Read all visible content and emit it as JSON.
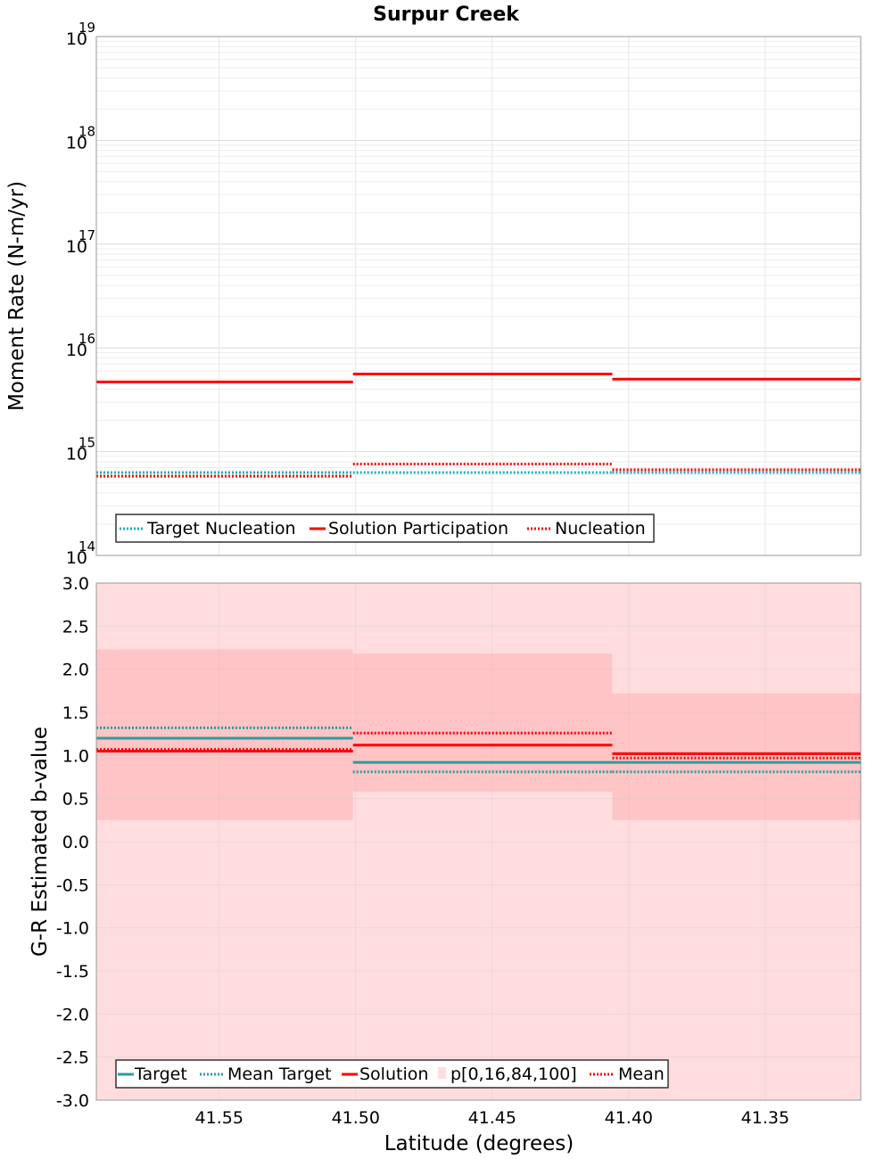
{
  "title": "Surpur Creek",
  "colors": {
    "target": "#2a9d9d",
    "target_dotted": "#1ab0b8",
    "solution": "#ff0000",
    "band_outer": "#ffdddf",
    "band_inner": "#ffc4c6",
    "grid": "#e6e6e6"
  },
  "chart_data": [
    {
      "type": "line",
      "step": true,
      "yscale": "log",
      "ylabel": "Moment Rate (N-m/yr)",
      "ylim": [
        100000000000000.0,
        1e+19
      ],
      "yticks": [
        {
          "base": "10",
          "exp": "14",
          "value": 100000000000000.0
        },
        {
          "base": "10",
          "exp": "15",
          "value": 1000000000000000.0
        },
        {
          "base": "10",
          "exp": "16",
          "value": 1e+16
        },
        {
          "base": "10",
          "exp": "17",
          "value": 1e+17
        },
        {
          "base": "10",
          "exp": "18",
          "value": 1e+18
        },
        {
          "base": "10",
          "exp": "19",
          "value": 1e+19
        }
      ],
      "xlim": [
        41.595,
        41.315
      ],
      "x_reversed": true,
      "grid": true,
      "legend_position": "bottom-left",
      "segments": [
        41.595,
        41.501,
        41.406,
        41.315
      ],
      "series": [
        {
          "name": "Target Nucleation",
          "style": "dotted",
          "color_key": "target_dotted",
          "values": [
            630000000000000.0,
            630000000000000.0,
            630000000000000.0
          ]
        },
        {
          "name": "Solution Participation",
          "style": "solid",
          "color_key": "solution",
          "values": [
            4700000000000000.0,
            5600000000000000.0,
            5000000000000000.0
          ]
        },
        {
          "name": "Nucleation",
          "style": "dotted",
          "color_key": "solution",
          "values": [
            580000000000000.0,
            760000000000000.0,
            670000000000000.0
          ]
        }
      ]
    },
    {
      "type": "line",
      "step": true,
      "ylabel": "G-R Estimated b-value",
      "xlabel": "Latitude (degrees)",
      "ylim": [
        -3.0,
        3.0
      ],
      "yticks": [
        "3.0",
        "2.5",
        "2.0",
        "1.5",
        "1.0",
        "0.5",
        "0.0",
        "-0.5",
        "-1.0",
        "-1.5",
        "-2.0",
        "-2.5",
        "-3.0"
      ],
      "xticks": [
        "41.55",
        "41.50",
        "41.45",
        "41.40",
        "41.35"
      ],
      "xlim": [
        41.595,
        41.315
      ],
      "x_reversed": true,
      "grid": true,
      "legend_position": "bottom-left",
      "segments": [
        41.595,
        41.501,
        41.406,
        41.315
      ],
      "band": {
        "name": "p[0,16,84,100]",
        "outer": [
          [
            -3.0,
            3.0
          ],
          [
            -3.0,
            3.0
          ],
          [
            -3.0,
            3.0
          ]
        ],
        "inner": [
          [
            0.25,
            2.23
          ],
          [
            0.58,
            2.18
          ],
          [
            0.25,
            1.72
          ]
        ]
      },
      "series": [
        {
          "name": "Target",
          "style": "solid",
          "color_key": "target",
          "values": [
            1.2,
            0.92,
            0.92
          ]
        },
        {
          "name": "Mean Target",
          "style": "dotted",
          "color_key": "target",
          "values": [
            1.32,
            0.81,
            0.81
          ]
        },
        {
          "name": "Solution",
          "style": "solid",
          "color_key": "solution",
          "values": [
            1.05,
            1.12,
            1.02
          ]
        },
        {
          "name": "Mean",
          "style": "dotted",
          "color_key": "solution",
          "values": [
            1.07,
            1.26,
            0.97
          ]
        }
      ],
      "legend_order": [
        "Target",
        "Mean Target",
        "Solution",
        "p[0,16,84,100]",
        "Mean"
      ]
    }
  ]
}
